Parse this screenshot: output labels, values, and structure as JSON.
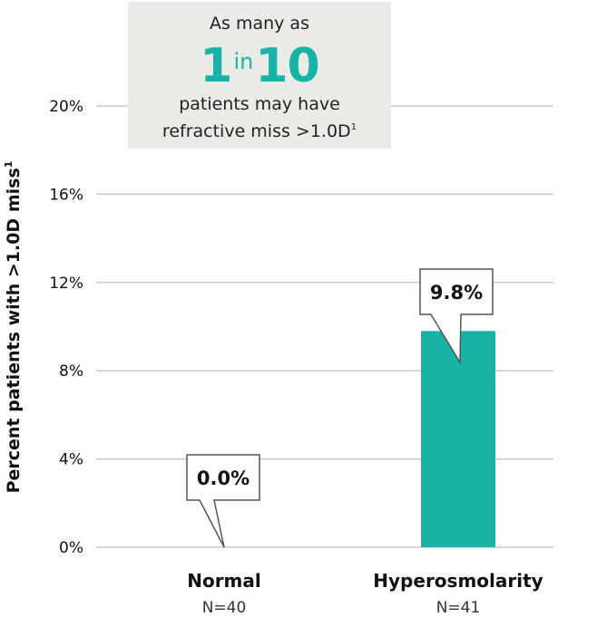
{
  "chart_data": {
    "type": "bar",
    "categories": [
      "Normal",
      "Hyperosmolarity"
    ],
    "n_labels": [
      "N=40",
      "N=41"
    ],
    "values": [
      0.0,
      9.8
    ],
    "value_labels": [
      "0.0%",
      "9.8%"
    ],
    "ylabel": "Percent patients with >1.0D miss",
    "ylabel_superscript": "1",
    "ylim": [
      0,
      20
    ],
    "yticks": [
      0,
      4,
      8,
      12,
      16,
      20
    ],
    "ytick_labels": [
      "0%",
      "4%",
      "8%",
      "12%",
      "16%",
      "20%"
    ],
    "grid": true,
    "bar_color": "#17b3a6",
    "grid_color": "#c8c8c8"
  },
  "callout": {
    "line1": "As many as",
    "big_left": "1",
    "big_mid": "in",
    "big_right": "10",
    "line3": "patients may have",
    "line4": "refractive miss >1.0D",
    "line4_sup": "1",
    "background": "#e8ebe6",
    "accent": "#17b3a6"
  }
}
